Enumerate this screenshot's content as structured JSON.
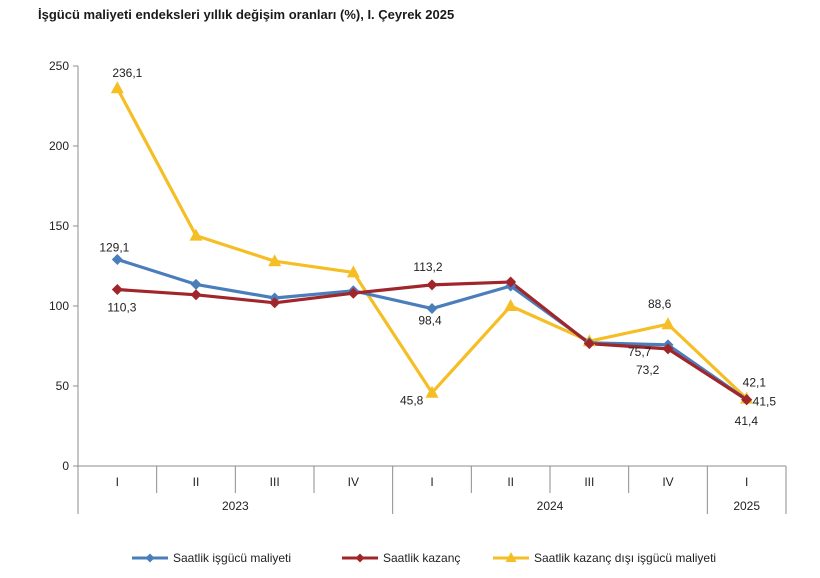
{
  "chart_data": {
    "type": "line",
    "title": "İşgücü maliyeti endeksleri yıllık değişim oranları (%), I. Çeyrek 2025",
    "xlabel": "",
    "ylabel": "",
    "ylim": [
      0,
      250
    ],
    "yticks": [
      0,
      50,
      100,
      150,
      200,
      250
    ],
    "grid": false,
    "legend": "bottom",
    "categories": [
      "I",
      "II",
      "III",
      "IV",
      "I",
      "II",
      "III",
      "IV",
      "I"
    ],
    "year_groups": [
      {
        "label": "2023",
        "start": 0,
        "end": 3
      },
      {
        "label": "2024",
        "start": 4,
        "end": 7
      },
      {
        "label": "2025",
        "start": 8,
        "end": 8
      }
    ],
    "series": [
      {
        "name": "Saatlik işgücü maliyeti",
        "color": "#4A7EBB",
        "marker": "diamond",
        "values": [
          129.1,
          113.5,
          105.0,
          109.5,
          98.4,
          112.5,
          77.0,
          75.7,
          41.5
        ],
        "labels": [
          {
            "index": 0,
            "text": "129,1"
          },
          {
            "index": 4,
            "text": "98,4"
          },
          {
            "index": 7,
            "text": "75,7"
          },
          {
            "index": 8,
            "text": "41,5"
          }
        ]
      },
      {
        "name": "Saatlik kazanç",
        "color": "#A0262B",
        "marker": "diamond",
        "values": [
          110.3,
          107.0,
          102.0,
          108.0,
          113.2,
          115.0,
          76.5,
          73.2,
          41.4
        ],
        "labels": [
          {
            "index": 0,
            "text": "110,3"
          },
          {
            "index": 4,
            "text": "113,2"
          },
          {
            "index": 7,
            "text": "73,2"
          },
          {
            "index": 8,
            "text": "41,4"
          }
        ]
      },
      {
        "name": "Saatlik kazanç dışı işgücü maliyeti",
        "color": "#F6BE25",
        "marker": "triangle",
        "values": [
          236.1,
          144.0,
          128.0,
          121.0,
          45.8,
          100.0,
          78.0,
          88.6,
          42.1
        ],
        "labels": [
          {
            "index": 0,
            "text": "236,1"
          },
          {
            "index": 4,
            "text": "45,8"
          },
          {
            "index": 7,
            "text": "88,6"
          },
          {
            "index": 8,
            "text": "42,1"
          }
        ]
      }
    ]
  }
}
